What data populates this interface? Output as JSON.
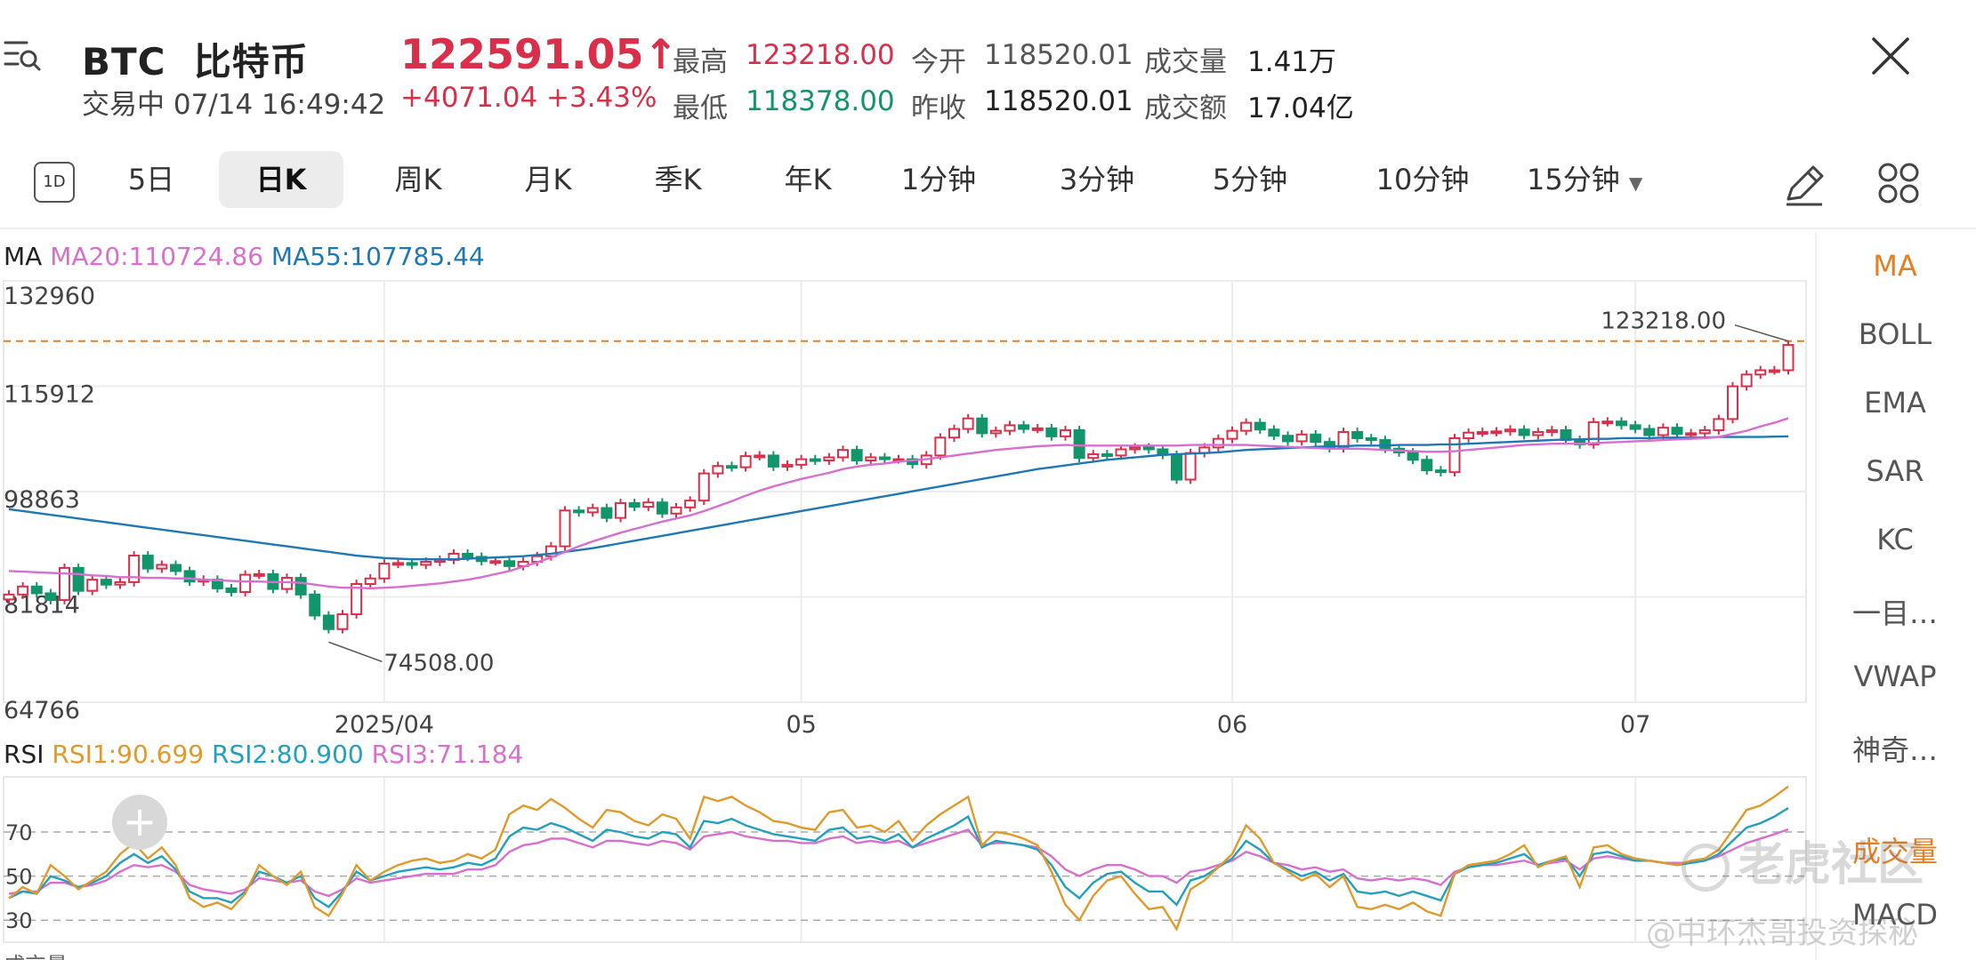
{
  "header": {
    "symbol": "BTC",
    "name": "比特币",
    "status": "交易中",
    "datetime": "07/14 16:49:42",
    "price": "122591.05",
    "price_arrow": "↑",
    "change": "+4071.04",
    "change_pct": "+3.43%",
    "stats": {
      "high_label": "最高",
      "high_value": "123218.00",
      "low_label": "最低",
      "low_value": "118378.00",
      "open_label": "今开",
      "open_value": "118520.01",
      "prev_close_label": "昨收",
      "prev_close_value": "118520.01",
      "volume_label": "成交量",
      "volume_value": "1.41万",
      "turnover_label": "成交额",
      "turnover_value": "17.04亿"
    }
  },
  "tabs": {
    "period_icon": "1D",
    "items": [
      "5日",
      "日K",
      "周K",
      "月K",
      "季K",
      "年K",
      "1分钟",
      "3分钟",
      "5分钟",
      "10分钟",
      "15分钟"
    ],
    "active": "日K"
  },
  "side_panel": {
    "items": [
      "MA",
      "BOLL",
      "EMA",
      "SAR",
      "KC",
      "一目…",
      "VWAP",
      "神奇…",
      "成交量",
      "MACD"
    ],
    "active": "MA"
  },
  "main_legend": {
    "name": "MA",
    "ma20": "MA20:110724.86",
    "ma55": "MA55:107785.44"
  },
  "rsi_legend": {
    "name": "RSI",
    "rsi1": "RSI1:90.699",
    "rsi2": "RSI2:80.900",
    "rsi3": "RSI3:71.184"
  },
  "watermark": {
    "brand": "老虎社区",
    "user": "@中环杰哥投资探秘"
  },
  "bottom_cut_label": "成交量",
  "colors": {
    "up": "#d8304a",
    "down": "#12956a",
    "ma20": "#d86fcf",
    "ma55": "#1f78b4",
    "rsi1": "#e09a2b",
    "rsi2": "#22a0bd",
    "rsi3": "#d86fcf",
    "high_line": "#e67e22"
  },
  "chart_data": {
    "type": "candlestick",
    "ylim": [
      64766,
      132960
    ],
    "y_ticks": [
      "132960",
      "115912",
      "98863",
      "81814",
      "64766"
    ],
    "x_ticks": [
      "2025/04",
      "05",
      "06",
      "07"
    ],
    "high_marker": "123218.00",
    "low_marker": "74508.00",
    "candles_close": [
      82200,
      83500,
      82400,
      81300,
      86500,
      82800,
      84600,
      83800,
      84200,
      88500,
      86400,
      87000,
      86000,
      84300,
      84600,
      83200,
      82600,
      85400,
      85500,
      83100,
      84900,
      82200,
      78800,
      76600,
      79000,
      83900,
      84800,
      87200,
      87300,
      87000,
      87500,
      87800,
      88800,
      88300,
      87600,
      87600,
      86800,
      87500,
      88400,
      90000,
      95800,
      95500,
      96200,
      94600,
      97000,
      96400,
      97100,
      95300,
      96300,
      97400,
      101800,
      103000,
      102800,
      104600,
      104700,
      102900,
      103200,
      104100,
      103900,
      104400,
      105600,
      103900,
      104400,
      104100,
      104100,
      103300,
      104700,
      107600,
      109000,
      110700,
      108300,
      108700,
      109600,
      109000,
      109100,
      107800,
      108800,
      104300,
      104900,
      104700,
      105700,
      106000,
      105700,
      104800,
      100800,
      105100,
      106000,
      107400,
      108700,
      110000,
      108900,
      107900,
      107000,
      108100,
      106900,
      105900,
      108500,
      107500,
      107200,
      105800,
      105200,
      104000,
      102300,
      102000,
      107500,
      108400,
      108500,
      108600,
      108900,
      108000,
      108500,
      108800,
      107200,
      106500,
      110100,
      110200,
      109600,
      109000,
      108000,
      109200,
      108200,
      108300,
      108800,
      110600,
      115900,
      117800,
      118500,
      118500,
      122590
    ],
    "ma20": [
      86000,
      85900,
      85800,
      85700,
      85600,
      85500,
      85300,
      85200,
      85000,
      85000,
      84900,
      84900,
      84800,
      84800,
      84600,
      84500,
      84400,
      84300,
      84300,
      84200,
      84200,
      84100,
      83800,
      83500,
      83300,
      83300,
      83200,
      83300,
      83400,
      83600,
      83800,
      84000,
      84300,
      84600,
      85000,
      85500,
      86000,
      86700,
      87400,
      88200,
      89100,
      90000,
      90800,
      91500,
      92200,
      92800,
      93400,
      94000,
      94500,
      95000,
      95700,
      96500,
      97300,
      98200,
      99000,
      99700,
      100300,
      100900,
      101400,
      101900,
      102500,
      102900,
      103200,
      103400,
      103700,
      103900,
      104100,
      104400,
      104700,
      105000,
      105300,
      105600,
      105800,
      106000,
      106200,
      106300,
      106400,
      106300,
      106300,
      106300,
      106300,
      106300,
      106300,
      106300,
      106300,
      106400,
      106400,
      106400,
      106400,
      106400,
      106300,
      106200,
      106100,
      106000,
      105900,
      105800,
      105800,
      105800,
      105700,
      105600,
      105500,
      105400,
      105300,
      105300,
      105400,
      105600,
      105800,
      106000,
      106200,
      106400,
      106500,
      106600,
      106600,
      106600,
      106700,
      106800,
      106900,
      107000,
      107100,
      107200,
      107300,
      107400,
      107500,
      107700,
      108200,
      108700,
      109400,
      110000,
      110724.86
    ],
    "ma55": [
      96000,
      95700,
      95400,
      95100,
      94800,
      94500,
      94200,
      93900,
      93600,
      93300,
      93000,
      92700,
      92400,
      92100,
      91800,
      91500,
      91200,
      90900,
      90600,
      90300,
      90000,
      89700,
      89400,
      89100,
      88800,
      88500,
      88300,
      88100,
      88000,
      87900,
      87900,
      87900,
      87900,
      88000,
      88100,
      88200,
      88300,
      88400,
      88600,
      88800,
      89100,
      89400,
      89700,
      90100,
      90500,
      90900,
      91300,
      91700,
      92100,
      92500,
      92900,
      93300,
      93700,
      94100,
      94500,
      94900,
      95300,
      95700,
      96100,
      96500,
      96900,
      97300,
      97700,
      98100,
      98500,
      98900,
      99300,
      99700,
      100100,
      100500,
      100900,
      101300,
      101700,
      102100,
      102500,
      102800,
      103100,
      103400,
      103700,
      104000,
      104200,
      104400,
      104600,
      104800,
      104900,
      105000,
      105100,
      105200,
      105400,
      105600,
      105700,
      105800,
      105900,
      106000,
      106100,
      106200,
      106200,
      106300,
      106300,
      106300,
      106400,
      106400,
      106400,
      106500,
      106500,
      106600,
      106700,
      106800,
      106900,
      107000,
      107100,
      107200,
      107300,
      107300,
      107400,
      107400,
      107500,
      107500,
      107500,
      107600,
      107600,
      107600,
      107600,
      107700,
      107700,
      107700,
      107700,
      107750,
      107785.44
    ],
    "rsi_ylim": [
      20,
      95
    ],
    "rsi_ticks": [
      "70",
      "50",
      "30"
    ],
    "rsi1": [
      40,
      45,
      42,
      55,
      50,
      44,
      48,
      52,
      60,
      65,
      58,
      63,
      55,
      40,
      36,
      38,
      35,
      42,
      55,
      50,
      46,
      52,
      36,
      32,
      42,
      55,
      48,
      52,
      55,
      57,
      58,
      56,
      57,
      60,
      58,
      62,
      78,
      82,
      80,
      85,
      81,
      76,
      72,
      80,
      79,
      75,
      73,
      78,
      76,
      67,
      86,
      84,
      86,
      82,
      79,
      75,
      74,
      72,
      71,
      79,
      80,
      72,
      73,
      70,
      75,
      66,
      73,
      78,
      82,
      86,
      64,
      70,
      69,
      67,
      64,
      52,
      37,
      30,
      41,
      48,
      50,
      42,
      35,
      36,
      26,
      44,
      48,
      54,
      60,
      73,
      67,
      56,
      52,
      48,
      51,
      45,
      50,
      36,
      35,
      37,
      35,
      38,
      34,
      32,
      51,
      55,
      56,
      57,
      60,
      64,
      54,
      57,
      59,
      45,
      63,
      64,
      60,
      58,
      57,
      56,
      55,
      57,
      58,
      62,
      71,
      80,
      82,
      86,
      90.7
    ],
    "rsi2": [
      40,
      43,
      42,
      50,
      48,
      45,
      47,
      50,
      56,
      60,
      56,
      59,
      53,
      43,
      40,
      40,
      38,
      43,
      52,
      50,
      47,
      50,
      40,
      36,
      43,
      52,
      48,
      50,
      52,
      53,
      54,
      53,
      54,
      56,
      55,
      58,
      68,
      72,
      71,
      74,
      72,
      69,
      66,
      71,
      70,
      68,
      67,
      70,
      69,
      63,
      75,
      74,
      76,
      73,
      71,
      69,
      68,
      67,
      66,
      71,
      72,
      67,
      68,
      66,
      69,
      63,
      67,
      70,
      73,
      77,
      63,
      66,
      65,
      64,
      62,
      55,
      45,
      40,
      47,
      51,
      52,
      47,
      43,
      43,
      37,
      48,
      50,
      54,
      58,
      66,
      62,
      56,
      53,
      50,
      52,
      48,
      51,
      43,
      42,
      43,
      41,
      43,
      41,
      39,
      51,
      54,
      55,
      56,
      58,
      60,
      55,
      57,
      58,
      50,
      60,
      61,
      59,
      57,
      57,
      56,
      55,
      56,
      57,
      60,
      66,
      72,
      74,
      77,
      80.9
    ],
    "rsi3": [
      42,
      43,
      43,
      47,
      47,
      45,
      46,
      48,
      52,
      55,
      54,
      55,
      52,
      46,
      44,
      43,
      42,
      44,
      49,
      48,
      47,
      48,
      43,
      41,
      44,
      49,
      47,
      48,
      49,
      50,
      51,
      51,
      51,
      53,
      53,
      55,
      61,
      64,
      65,
      67,
      67,
      65,
      63,
      66,
      66,
      65,
      64,
      66,
      65,
      62,
      68,
      69,
      70,
      68,
      67,
      66,
      66,
      65,
      65,
      67,
      68,
      65,
      66,
      65,
      66,
      63,
      65,
      67,
      69,
      71,
      64,
      65,
      65,
      64,
      63,
      59,
      53,
      50,
      53,
      55,
      55,
      53,
      50,
      50,
      47,
      52,
      53,
      55,
      57,
      61,
      59,
      56,
      55,
      53,
      54,
      52,
      53,
      49,
      48,
      49,
      48,
      49,
      48,
      46,
      52,
      54,
      55,
      55,
      56,
      57,
      55,
      56,
      57,
      53,
      58,
      59,
      58,
      57,
      57,
      56,
      56,
      56,
      57,
      59,
      62,
      65,
      67,
      69,
      71.2
    ]
  }
}
